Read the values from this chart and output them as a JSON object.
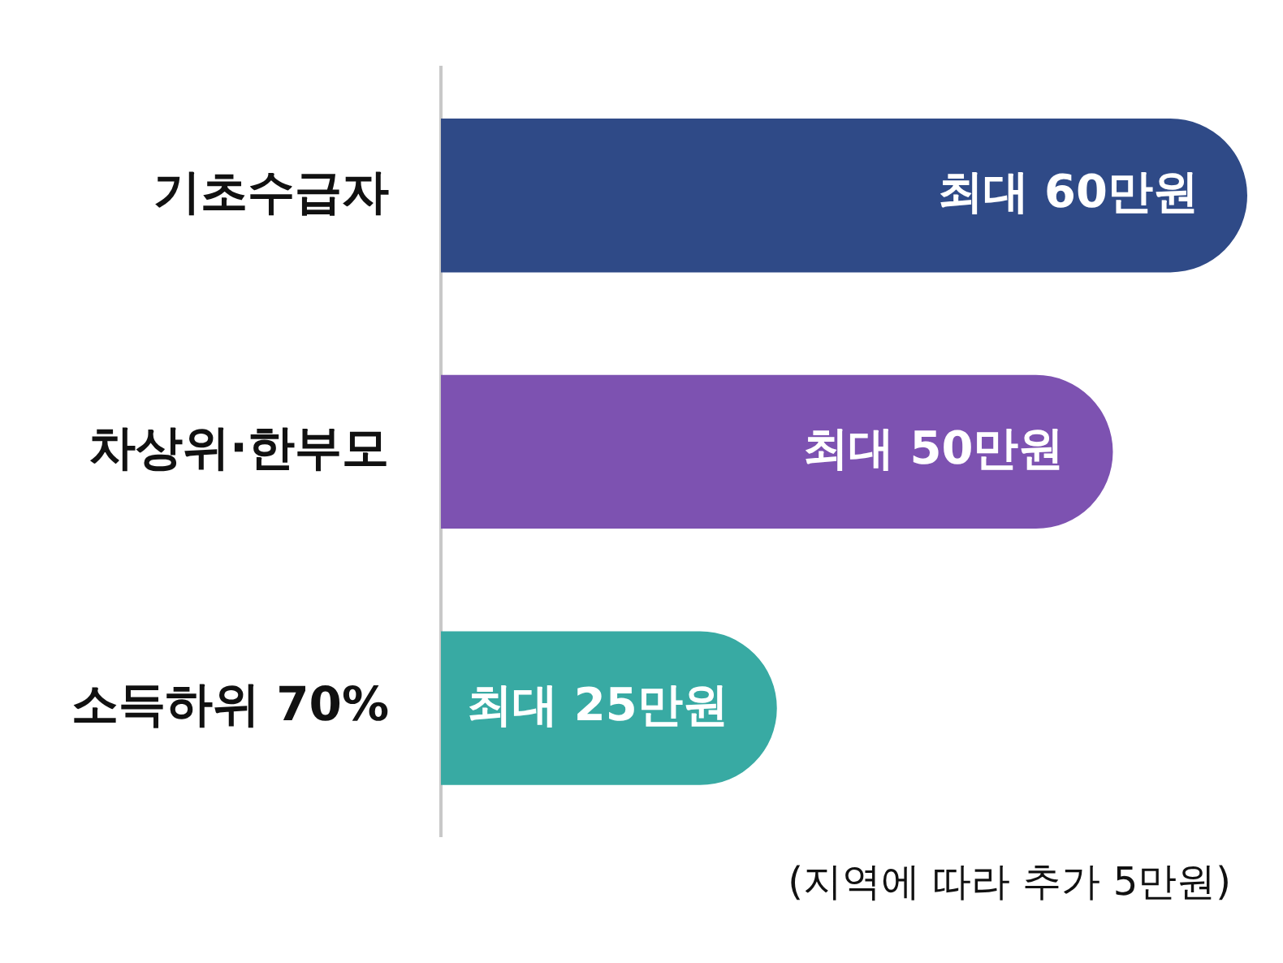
{
  "chart_data": {
    "type": "bar",
    "orientation": "horizontal",
    "categories": [
      "기초수급자",
      "차상위·한부모",
      "소득하위 70%"
    ],
    "values": [
      60,
      50,
      25
    ],
    "colors": [
      "#2f4a87",
      "#7d52b1",
      "#38aaa3"
    ],
    "value_labels": [
      "최대 60만원",
      "최대 50만원",
      "최대 25만원"
    ],
    "tick_labels": "y",
    "grid": false,
    "legend": false,
    "annotations": [
      "(지역에 따라 추가 5만원)"
    ]
  }
}
